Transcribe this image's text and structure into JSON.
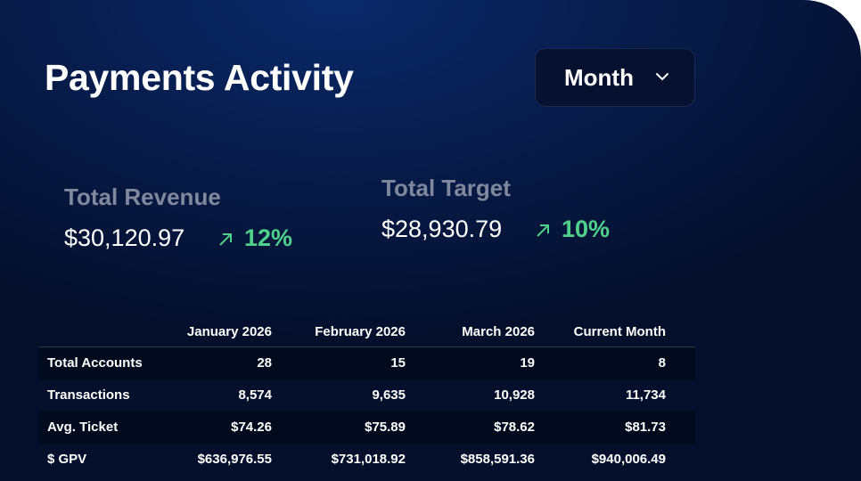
{
  "header": {
    "title": "Payments Activity",
    "dropdown": "Month"
  },
  "metrics": [
    {
      "label": "Total Revenue",
      "value": "$30,120.97",
      "change": "12%"
    },
    {
      "label": "Total Target",
      "value": "$28,930.79",
      "change": "10%"
    }
  ],
  "table": {
    "columns": [
      "January 2026",
      "February 2026",
      "March 2026",
      "Current Month"
    ],
    "rows": [
      {
        "label": "Total Accounts",
        "cells": [
          "28",
          "15",
          "19",
          "8"
        ]
      },
      {
        "label": "Transactions",
        "cells": [
          "8,574",
          "9,635",
          "10,928",
          "11,734"
        ]
      },
      {
        "label": "Avg. Ticket",
        "cells": [
          "$74.26",
          "$75.89",
          "$78.62",
          "$81.73"
        ]
      },
      {
        "label": "$ GPV",
        "cells": [
          "$636,976.55",
          "$731,018.92",
          "$858,591.36",
          "$940,006.49"
        ]
      }
    ]
  }
}
